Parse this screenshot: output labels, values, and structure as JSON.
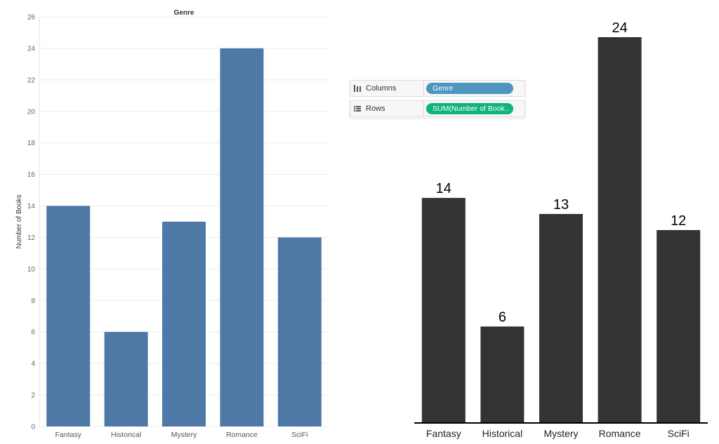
{
  "colors": {
    "left_bar": "#4e79a7",
    "right_bar": "#333333",
    "dimension_pill": "#4e96bf",
    "measure_pill": "#0fb47a"
  },
  "left_chart": {
    "header": "Genre",
    "ylabel": "Number of Books"
  },
  "right_chart": {},
  "shelves": {
    "columns": {
      "label": "Columns",
      "icon": "columns-icon",
      "pill": "Genre"
    },
    "rows": {
      "label": "Rows",
      "icon": "rows-icon",
      "pill": "SUM(Number of Book.."
    }
  },
  "chart_data": [
    {
      "type": "bar",
      "categories": [
        "Fantasy",
        "Historical",
        "Mystery",
        "Romance",
        "SciFi"
      ],
      "values": [
        14,
        6,
        13,
        24,
        12
      ],
      "title": "Genre",
      "xlabel": "",
      "ylabel": "Number of Books",
      "ylim": [
        0,
        26
      ],
      "yticks": [
        0,
        2,
        4,
        6,
        8,
        10,
        12,
        14,
        16,
        18,
        20,
        22,
        24,
        26
      ],
      "grid": true,
      "legend": "none"
    },
    {
      "type": "bar",
      "categories": [
        "Fantasy",
        "Historical",
        "Mystery",
        "Romance",
        "SciFi"
      ],
      "values": [
        14,
        6,
        13,
        24,
        12
      ],
      "title": "",
      "xlabel": "",
      "ylabel": "",
      "ylim": [
        0,
        24
      ],
      "data_labels": [
        "14",
        "6",
        "13",
        "24",
        "12"
      ],
      "grid": false,
      "legend": "none"
    }
  ]
}
